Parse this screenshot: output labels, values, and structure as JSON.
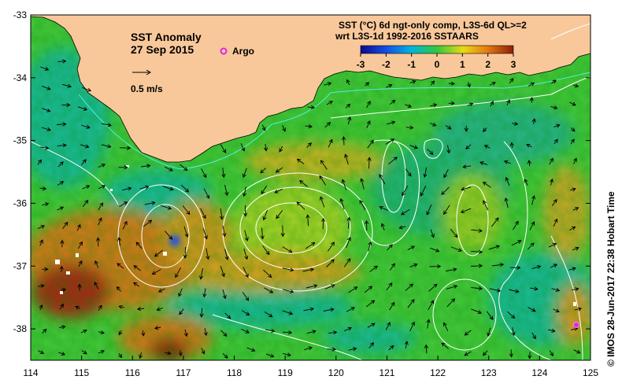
{
  "map": {
    "title": "SST Anomaly",
    "date": "27 Sep 2015",
    "argo_label": "Argo",
    "scale_label": "0.5 m/s",
    "colorbar_title_line1": "SST (°C) 6d ngt-only comp, L3S-6d QL>=2",
    "colorbar_title_line2": "wrt L3S-1d 1992-2016 SSTAARS",
    "colorbar_ticks": [
      "-3",
      "-2",
      "-1",
      "0",
      "1",
      "2",
      "3"
    ],
    "colorbar_range": [
      -3,
      3
    ],
    "credit": "© IMOS 28-Jun-2017 22:38 Hobart Time",
    "lon_ticks": [
      "114",
      "115",
      "116",
      "117",
      "118",
      "119",
      "120",
      "121",
      "122",
      "123",
      "124",
      "125"
    ],
    "lat_ticks": [
      "-33",
      "-34",
      "-35",
      "-36",
      "-37",
      "-38"
    ],
    "lon_range": [
      114,
      125
    ],
    "lat_range": [
      -38.5,
      -33
    ],
    "colors": {
      "land": "#f8c89a",
      "ocean_green": "#46c83c",
      "teal": "#1ab99a",
      "warm": "#d7a020",
      "orange": "#d7641e",
      "red": "#a82814",
      "contour": "#ffffff",
      "argo": "#e028e0"
    }
  }
}
